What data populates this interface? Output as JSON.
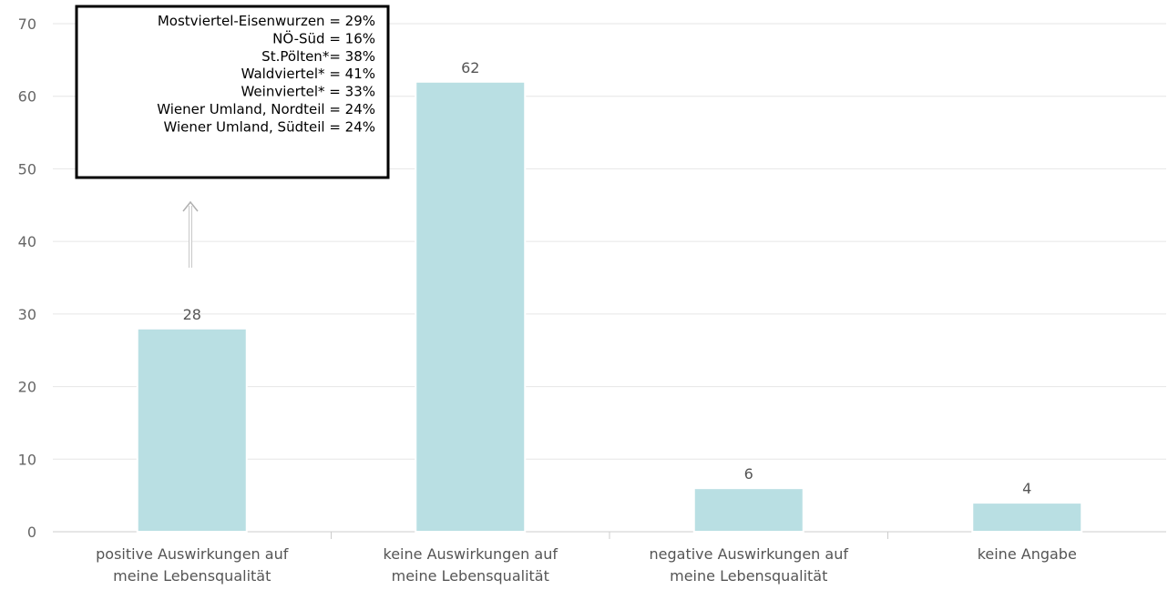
{
  "chart_data": {
    "type": "bar",
    "categories": [
      [
        "positive Auswirkungen auf",
        "meine Lebensqualität"
      ],
      [
        "keine Auswirkungen auf",
        "meine Lebensqualität"
      ],
      [
        "negative Auswirkungen auf",
        "meine Lebensqualität"
      ],
      [
        "keine Angabe"
      ]
    ],
    "values": [
      28,
      62,
      6,
      4
    ],
    "ylim": [
      0,
      70
    ],
    "yticks": [
      0,
      10,
      20,
      30,
      40,
      50,
      60,
      70
    ],
    "grid": true,
    "colors": {
      "bar": "#b9dfe3",
      "bar_border": "#ffffff",
      "grid": "#e6e6e6",
      "axis": "#cccccc"
    },
    "annotation": {
      "lines": [
        "Mostviertel-Eisenwurzen = 29%",
        "NÖ-Süd = 16%",
        "St.Pölten*= 38%",
        "Waldviertel* = 41%",
        "Weinviertel* = 33%",
        "Wiener Umland, Nordteil = 24%",
        "Wiener Umland, Südteil = 24%"
      ],
      "points_to_category": 0
    }
  }
}
